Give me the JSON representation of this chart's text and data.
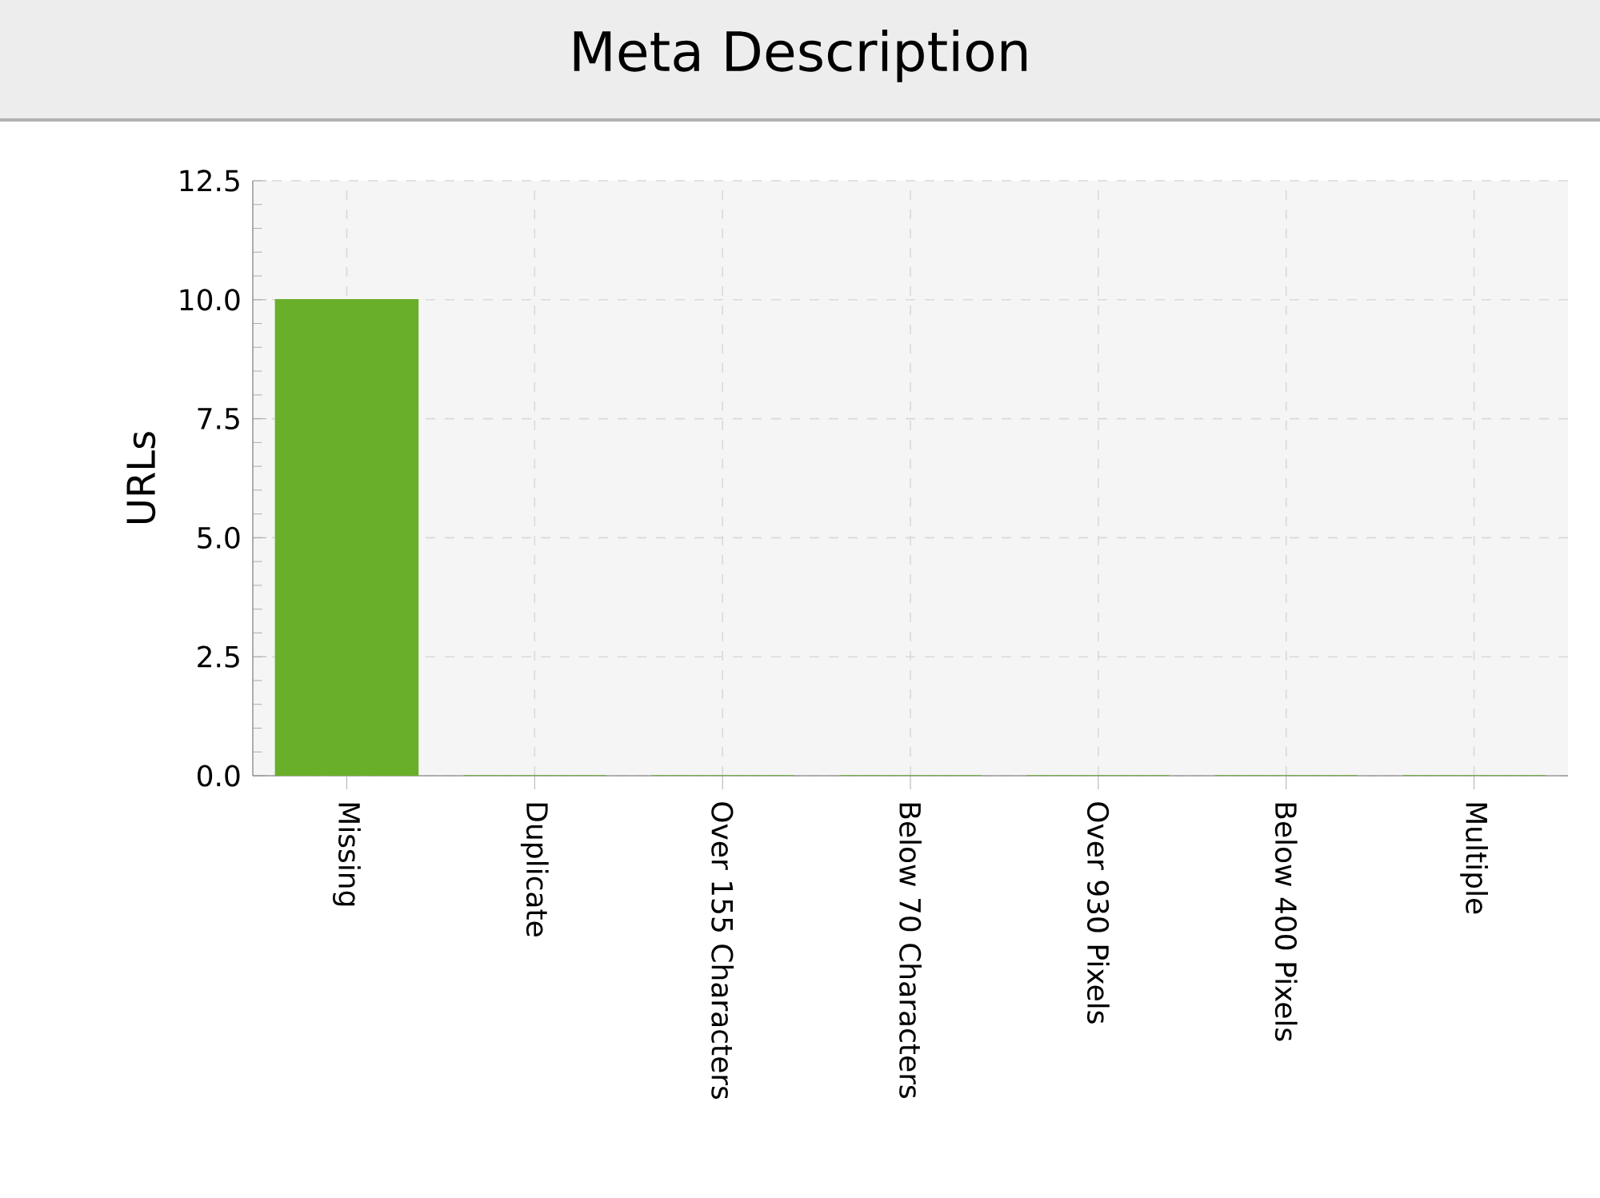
{
  "chart_data": {
    "type": "bar",
    "title": "Meta Description",
    "ylabel": "URLs",
    "categories": [
      "Missing",
      "Duplicate",
      "Over 155 Characters",
      "Below 70 Characters",
      "Over 930 Pixels",
      "Below 400 Pixels",
      "Multiple"
    ],
    "values": [
      10,
      0,
      0,
      0,
      0,
      0,
      0
    ],
    "color": "#6aaf2a",
    "ylim": [
      0,
      12.5
    ],
    "yticks": [
      {
        "value": 0,
        "label": "0.0"
      },
      {
        "value": 2.5,
        "label": "2.5"
      },
      {
        "value": 5,
        "label": "5.0"
      },
      {
        "value": 7.5,
        "label": "7.5"
      },
      {
        "value": 10,
        "label": "10.0"
      },
      {
        "value": 12.5,
        "label": "12.5"
      }
    ],
    "grid": true
  }
}
